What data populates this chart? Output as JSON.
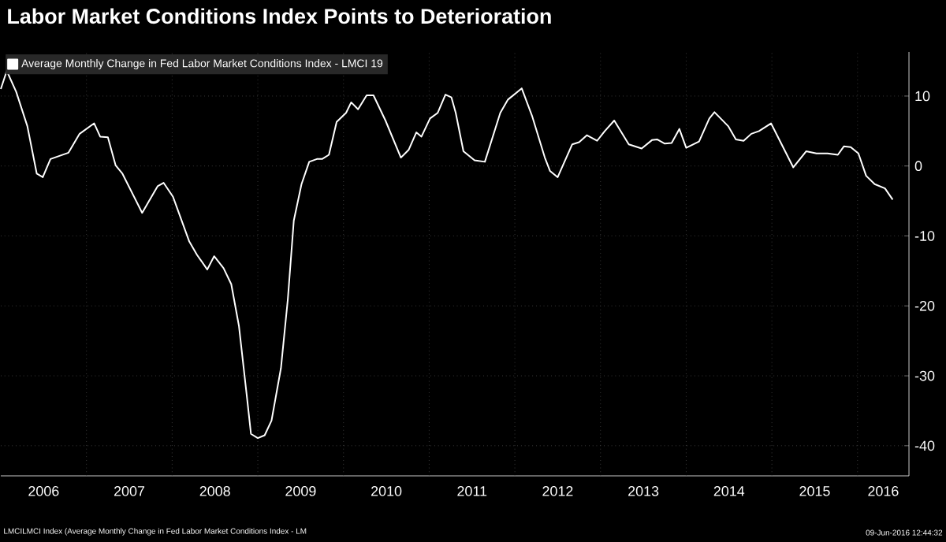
{
  "chart_data": {
    "type": "line",
    "title": "Labor Market Conditions Index Points to Deterioration",
    "x": [
      2006.0,
      2006.07,
      2006.18,
      2006.31,
      2006.42,
      2006.49,
      2006.58,
      2006.79,
      2006.92,
      2007.09,
      2007.16,
      2007.25,
      2007.34,
      2007.42,
      2007.65,
      2007.83,
      2007.9,
      2008.01,
      2008.2,
      2008.29,
      2008.41,
      2008.49,
      2008.6,
      2008.69,
      2008.78,
      2008.87,
      2008.92,
      2009.0,
      2009.08,
      2009.16,
      2009.27,
      2009.35,
      2009.42,
      2009.51,
      2009.6,
      2009.69,
      2009.75,
      2009.83,
      2009.92,
      2010.03,
      2010.09,
      2010.17,
      2010.27,
      2010.35,
      2010.49,
      2010.67,
      2010.76,
      2010.85,
      2010.91,
      2011.01,
      2011.1,
      2011.19,
      2011.26,
      2011.31,
      2011.4,
      2011.53,
      2011.65,
      2011.83,
      2011.92,
      2012.08,
      2012.2,
      2012.35,
      2012.41,
      2012.5,
      2012.67,
      2012.75,
      2012.84,
      2012.96,
      2013.05,
      2013.16,
      2013.33,
      2013.48,
      2013.6,
      2013.66,
      2013.75,
      2013.83,
      2013.92,
      2014.0,
      2014.15,
      2014.27,
      2014.33,
      2014.49,
      2014.58,
      2014.67,
      2014.76,
      2014.85,
      2014.99,
      2015.25,
      2015.4,
      2015.52,
      2015.65,
      2015.77,
      2015.84,
      2015.92,
      2016.01,
      2016.1,
      2016.2,
      2016.32,
      2016.41
    ],
    "series": [
      {
        "name": "Average Monthly Change in Fed Labor Market Conditions Index - LMCI 19",
        "color": "#ffffff",
        "values": [
          11.0,
          13.6,
          10.6,
          5.7,
          -1.1,
          -1.6,
          1.0,
          1.9,
          4.6,
          6.1,
          4.2,
          4.1,
          0.1,
          -1.1,
          -6.7,
          -2.9,
          -2.4,
          -4.4,
          -10.8,
          -12.7,
          -14.8,
          -12.9,
          -14.6,
          -16.9,
          -22.9,
          -32.7,
          -38.3,
          -38.9,
          -38.5,
          -36.4,
          -28.9,
          -19.1,
          -7.8,
          -2.6,
          0.6,
          1.0,
          1.0,
          1.6,
          6.3,
          7.6,
          9.1,
          8.1,
          10.1,
          10.1,
          6.5,
          1.2,
          2.3,
          4.8,
          4.2,
          6.8,
          7.6,
          10.2,
          9.8,
          7.6,
          2.1,
          0.8,
          0.6,
          7.6,
          9.5,
          11.1,
          7.2,
          1.2,
          -0.7,
          -1.6,
          3.1,
          3.4,
          4.4,
          3.6,
          5.0,
          6.5,
          3.1,
          2.5,
          3.7,
          3.8,
          3.2,
          3.3,
          5.3,
          2.6,
          3.5,
          6.8,
          7.7,
          5.7,
          3.8,
          3.6,
          4.6,
          5.0,
          6.1,
          -0.2,
          2.1,
          1.8,
          1.8,
          1.6,
          2.8,
          2.7,
          1.8,
          -1.4,
          -2.6,
          -3.2,
          -4.8
        ]
      }
    ],
    "xlim": [
      2006.0,
      2016.6
    ],
    "ylim": [
      -44.3,
      16.3
    ],
    "xticks": [
      {
        "value": 2007,
        "label": null
      },
      {
        "value": 2008,
        "label": null
      },
      {
        "value": 2009,
        "label": null
      },
      {
        "value": 2010,
        "label": null
      },
      {
        "value": 2011,
        "label": null
      },
      {
        "value": 2012,
        "label": null
      },
      {
        "value": 2013,
        "label": null
      },
      {
        "value": 2014,
        "label": null
      },
      {
        "value": 2015,
        "label": null
      },
      {
        "value": 2016,
        "label": null
      },
      {
        "value": 2006.5,
        "label": "2006"
      },
      {
        "value": 2007.5,
        "label": "2007"
      },
      {
        "value": 2008.5,
        "label": "2008"
      },
      {
        "value": 2009.5,
        "label": "2009"
      },
      {
        "value": 2010.5,
        "label": "2010"
      },
      {
        "value": 2011.5,
        "label": "2011"
      },
      {
        "value": 2012.5,
        "label": "2012"
      },
      {
        "value": 2013.5,
        "label": "2013"
      },
      {
        "value": 2014.5,
        "label": "2014"
      },
      {
        "value": 2015.5,
        "label": "2015"
      },
      {
        "value": 2016.3,
        "label": "2016"
      }
    ],
    "yticks": [
      10,
      0,
      -10,
      -20,
      -30,
      -40
    ],
    "grid": true,
    "legend": "top left",
    "annotations": [
      "LMCILMCI Index (Average Monthly Change in Fed Labor Market Conditions Index - LM",
      "09-Jun-2016 12:44:32"
    ]
  }
}
